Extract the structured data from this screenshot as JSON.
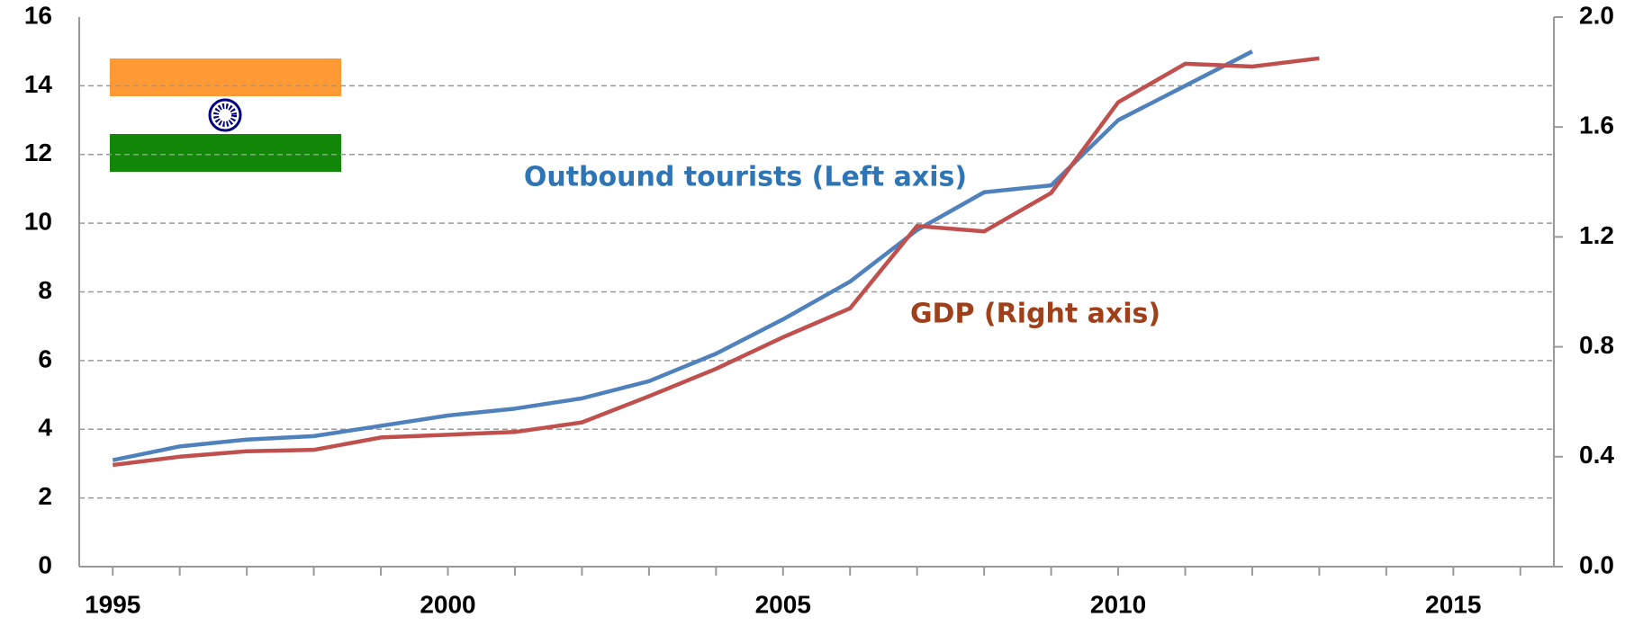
{
  "chart_data": {
    "type": "line",
    "x": [
      1995,
      1996,
      1997,
      1998,
      1999,
      2000,
      2001,
      2002,
      2003,
      2004,
      2005,
      2006,
      2007,
      2008,
      2009,
      2010,
      2011,
      2012,
      2013
    ],
    "series": [
      {
        "name": "Outbound tourists (Left axis)",
        "color": "#4f81bd",
        "label_color": "#2e75b6",
        "values": [
          3.1,
          3.5,
          3.7,
          3.8,
          4.1,
          4.4,
          4.6,
          4.9,
          5.4,
          6.2,
          7.2,
          8.3,
          9.8,
          10.9,
          11.1,
          13.0,
          14.0,
          15.0,
          null
        ]
      },
      {
        "name": "GDP (Right axis)",
        "color": "#c0504d",
        "label_color": "#a0401a",
        "axis": "y2",
        "values": [
          0.37,
          0.4,
          0.42,
          0.425,
          0.47,
          0.48,
          0.49,
          0.525,
          0.62,
          0.72,
          0.835,
          0.94,
          1.24,
          1.22,
          1.36,
          1.69,
          1.83,
          1.82,
          1.85
        ]
      }
    ],
    "xlim": [
      1994.5,
      2016.5
    ],
    "xticks": [
      1995,
      2000,
      2005,
      2010,
      2015
    ],
    "x_minor_ticks": [
      1995,
      1996,
      1997,
      1998,
      1999,
      2000,
      2001,
      2002,
      2003,
      2004,
      2005,
      2006,
      2007,
      2008,
      2009,
      2010,
      2011,
      2012,
      2013,
      2014,
      2015,
      2016
    ],
    "ylim": [
      0,
      16
    ],
    "yticks": [
      0,
      2,
      4,
      6,
      8,
      10,
      12,
      14,
      16
    ],
    "y2lim": [
      0,
      2
    ],
    "y2ticks": [
      {
        "value": 0,
        "label": "0.0"
      },
      {
        "value": 0.4,
        "label": "0.4"
      },
      {
        "value": 0.8,
        "label": "0.8"
      },
      {
        "value": 1.2,
        "label": "1.2"
      },
      {
        "value": 1.6,
        "label": "1.6"
      },
      {
        "value": 2,
        "label": "2.0"
      }
    ],
    "grid": true
  }
}
